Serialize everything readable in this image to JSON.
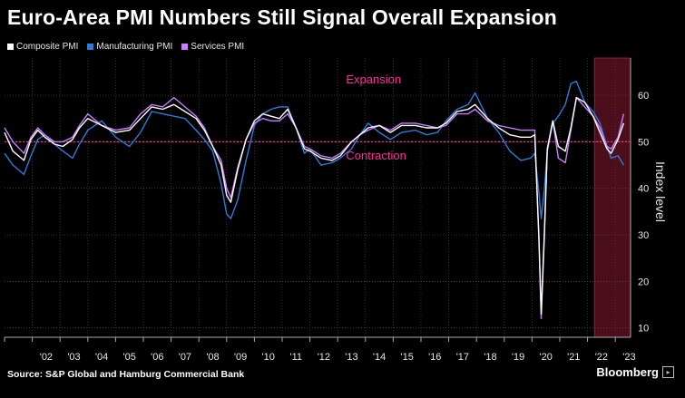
{
  "title": "Euro-Area PMI Numbers Still Signal Overall Expansion",
  "source": "Source: S&P Global and Hamburg Commercial Bank",
  "brand": "Bloomberg",
  "colors": {
    "composite": "#ffffff",
    "manufacturing": "#2f7bd9",
    "services": "#c77dff",
    "threshold": "#ff2d9b",
    "annotation": "#ff2d9b",
    "recent_shade": "#5a1020"
  },
  "chart_data": {
    "type": "line",
    "title": "Euro-Area PMI Numbers Still Signal Overall Expansion",
    "ylabel": "Index level",
    "ylim": [
      8,
      68
    ],
    "yticks": [
      10,
      20,
      30,
      40,
      50,
      60
    ],
    "xlim": [
      2001.0,
      2023.55
    ],
    "xtick_labels": [
      "'02",
      "'03",
      "'04",
      "'05",
      "'06",
      "'07",
      "'08",
      "'09",
      "'10",
      "'11",
      "'12",
      "'13",
      "'14",
      "'15",
      "'16",
      "'17",
      "'18",
      "'19",
      "'20",
      "'21",
      "'22",
      "'23"
    ],
    "threshold": 50,
    "annotations": [
      {
        "text": "Expansion",
        "x": 2013.3,
        "y": 62.5
      },
      {
        "text": "Contraction",
        "x": 2013.3,
        "y": 46.2
      }
    ],
    "shaded_range": {
      "from": 2022.25,
      "to": 2023.55
    },
    "series": [
      {
        "name": "Composite PMI",
        "x": [
          2001.0,
          2001.3,
          2001.7,
          2001.95,
          2002.2,
          2002.45,
          2002.8,
          2003.1,
          2003.45,
          2003.7,
          2004.0,
          2004.5,
          2005.0,
          2005.5,
          2005.9,
          2006.3,
          2006.7,
          2007.1,
          2007.5,
          2007.9,
          2008.2,
          2008.5,
          2008.8,
          2009.0,
          2009.15,
          2009.4,
          2009.7,
          2010.0,
          2010.3,
          2010.6,
          2010.9,
          2011.2,
          2011.5,
          2011.8,
          2012.0,
          2012.4,
          2012.8,
          2013.1,
          2013.5,
          2013.8,
          2014.1,
          2014.5,
          2014.9,
          2015.3,
          2015.8,
          2016.2,
          2016.6,
          2016.9,
          2017.3,
          2017.7,
          2017.95,
          2018.4,
          2018.8,
          2019.2,
          2019.6,
          2019.95,
          2020.1,
          2020.25,
          2020.33,
          2020.45,
          2020.55,
          2020.75,
          2020.95,
          2021.2,
          2021.4,
          2021.6,
          2021.9,
          2022.2,
          2022.45,
          2022.7,
          2022.85,
          2023.1,
          2023.3
        ],
        "values": [
          52.0,
          48.0,
          46.0,
          50.5,
          52.5,
          51.0,
          49.5,
          49.0,
          50.5,
          53.0,
          55.0,
          53.5,
          52.0,
          52.5,
          55.0,
          57.5,
          57.0,
          58.0,
          56.5,
          55.0,
          52.5,
          49.0,
          45.0,
          38.5,
          37.0,
          44.0,
          50.5,
          54.5,
          56.0,
          55.5,
          55.0,
          57.0,
          53.0,
          48.5,
          48.0,
          46.5,
          46.0,
          47.0,
          50.0,
          51.5,
          53.0,
          53.5,
          52.0,
          53.5,
          53.5,
          53.0,
          53.0,
          54.0,
          56.5,
          57.0,
          58.0,
          55.0,
          53.0,
          51.5,
          51.0,
          51.0,
          51.5,
          29.5,
          13.0,
          31.0,
          48.5,
          54.5,
          49.0,
          48.0,
          53.0,
          59.5,
          58.5,
          55.5,
          52.0,
          48.5,
          47.5,
          50.5,
          54.0
        ]
      },
      {
        "name": "Manufacturing PMI",
        "x": [
          2001.0,
          2001.3,
          2001.7,
          2001.95,
          2002.2,
          2002.45,
          2002.8,
          2003.1,
          2003.45,
          2003.7,
          2004.0,
          2004.5,
          2005.0,
          2005.5,
          2005.9,
          2006.3,
          2006.7,
          2007.1,
          2007.5,
          2007.9,
          2008.2,
          2008.5,
          2008.8,
          2009.0,
          2009.15,
          2009.4,
          2009.7,
          2010.0,
          2010.3,
          2010.6,
          2010.9,
          2011.2,
          2011.5,
          2011.8,
          2012.0,
          2012.4,
          2012.8,
          2013.1,
          2013.5,
          2013.8,
          2014.1,
          2014.5,
          2014.9,
          2015.3,
          2015.8,
          2016.2,
          2016.6,
          2016.9,
          2017.3,
          2017.7,
          2017.95,
          2018.4,
          2018.8,
          2019.2,
          2019.6,
          2019.95,
          2020.1,
          2020.25,
          2020.33,
          2020.45,
          2020.55,
          2020.75,
          2020.95,
          2021.2,
          2021.4,
          2021.6,
          2021.9,
          2022.2,
          2022.45,
          2022.7,
          2022.85,
          2023.1,
          2023.3
        ],
        "values": [
          47.5,
          45.0,
          43.0,
          47.0,
          50.5,
          51.5,
          49.5,
          48.0,
          46.5,
          49.5,
          52.5,
          54.5,
          51.0,
          49.0,
          52.0,
          56.5,
          56.0,
          55.5,
          55.0,
          52.5,
          50.5,
          48.0,
          41.0,
          34.5,
          33.5,
          37.5,
          46.0,
          53.5,
          56.0,
          57.0,
          57.5,
          57.5,
          53.0,
          47.5,
          48.5,
          45.0,
          45.5,
          46.5,
          48.5,
          51.5,
          54.0,
          52.0,
          50.5,
          52.0,
          52.5,
          51.5,
          52.0,
          54.5,
          57.0,
          58.0,
          60.5,
          55.0,
          52.0,
          48.0,
          46.0,
          46.5,
          47.5,
          39.0,
          33.5,
          40.0,
          48.0,
          54.0,
          55.5,
          58.0,
          62.5,
          63.0,
          58.5,
          56.5,
          54.0,
          49.0,
          46.5,
          47.0,
          45.0
        ]
      },
      {
        "name": "Services PMI",
        "x": [
          2001.0,
          2001.3,
          2001.7,
          2001.95,
          2002.2,
          2002.45,
          2002.8,
          2003.1,
          2003.45,
          2003.7,
          2004.0,
          2004.5,
          2005.0,
          2005.5,
          2005.9,
          2006.3,
          2006.7,
          2007.1,
          2007.5,
          2007.9,
          2008.2,
          2008.5,
          2008.8,
          2009.0,
          2009.15,
          2009.4,
          2009.7,
          2010.0,
          2010.3,
          2010.6,
          2010.9,
          2011.2,
          2011.5,
          2011.8,
          2012.0,
          2012.4,
          2012.8,
          2013.1,
          2013.5,
          2013.8,
          2014.1,
          2014.5,
          2014.9,
          2015.3,
          2015.8,
          2016.2,
          2016.6,
          2016.9,
          2017.3,
          2017.7,
          2017.95,
          2018.4,
          2018.8,
          2019.2,
          2019.6,
          2019.95,
          2020.1,
          2020.25,
          2020.33,
          2020.45,
          2020.55,
          2020.75,
          2020.95,
          2021.2,
          2021.4,
          2021.6,
          2021.9,
          2022.2,
          2022.45,
          2022.7,
          2022.85,
          2023.1,
          2023.3
        ],
        "values": [
          53.0,
          50.0,
          47.5,
          51.0,
          53.0,
          51.5,
          50.0,
          50.0,
          51.0,
          53.5,
          56.0,
          53.5,
          52.5,
          53.0,
          56.0,
          58.0,
          57.5,
          59.5,
          57.5,
          55.5,
          53.0,
          49.0,
          46.0,
          40.0,
          38.0,
          44.5,
          50.5,
          54.0,
          55.0,
          54.5,
          54.5,
          56.0,
          53.0,
          49.0,
          48.5,
          47.0,
          46.5,
          47.5,
          50.0,
          51.5,
          52.5,
          53.5,
          52.5,
          54.0,
          54.0,
          53.5,
          53.0,
          53.5,
          56.0,
          56.0,
          57.0,
          54.5,
          53.5,
          53.0,
          52.5,
          52.5,
          52.5,
          28.5,
          12.0,
          30.0,
          48.0,
          54.5,
          46.5,
          45.5,
          52.5,
          59.5,
          57.5,
          55.5,
          53.0,
          49.0,
          48.5,
          51.0,
          56.0
        ]
      }
    ]
  }
}
